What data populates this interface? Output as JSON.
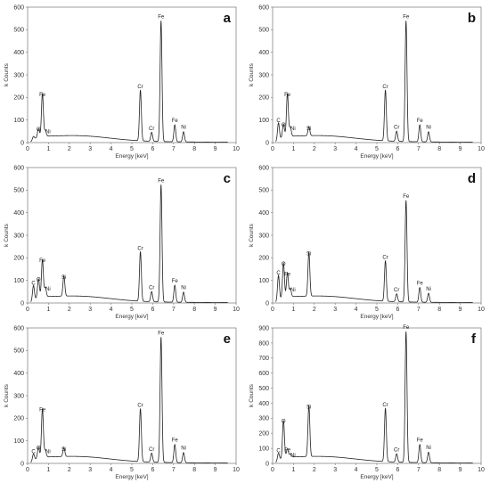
{
  "chart_data": [
    {
      "type": "line",
      "panel_letter": "a",
      "xlabel": "Energy [keV]",
      "ylabel": "k Counts",
      "xlim": [
        0,
        10
      ],
      "ylim": [
        0,
        600
      ],
      "xticks": [
        0,
        1,
        2,
        3,
        4,
        5,
        6,
        7,
        8,
        9,
        10
      ],
      "yticks": [
        0,
        100,
        200,
        300,
        400,
        500,
        600
      ],
      "peaks": [
        {
          "label": "",
          "x": 0.28,
          "y": 15
        },
        {
          "label": "O",
          "x": 0.52,
          "y": 35
        },
        {
          "label": "Fe",
          "x": 0.71,
          "y": 190
        },
        {
          "label": "Ni",
          "x": 0.85,
          "y": 25
        },
        {
          "label": "Cr",
          "x": 5.41,
          "y": 225
        },
        {
          "label": "Cr",
          "x": 5.95,
          "y": 40
        },
        {
          "label": "Fe",
          "x": 6.4,
          "y": 535
        },
        {
          "label": "Fe",
          "x": 7.06,
          "y": 75
        },
        {
          "label": "Ni",
          "x": 7.48,
          "y": 45
        }
      ]
    },
    {
      "type": "line",
      "panel_letter": "b",
      "xlabel": "Energy [keV]",
      "ylabel": "k Counts",
      "xlim": [
        0,
        10
      ],
      "ylim": [
        0,
        600
      ],
      "xticks": [
        0,
        1,
        2,
        3,
        4,
        5,
        6,
        7,
        8,
        9,
        10
      ],
      "yticks": [
        0,
        100,
        200,
        300,
        400,
        500,
        600
      ],
      "peaks": [
        {
          "label": "C",
          "x": 0.28,
          "y": 75
        },
        {
          "label": "O",
          "x": 0.52,
          "y": 55
        },
        {
          "label": "Fe",
          "x": 0.71,
          "y": 190
        },
        {
          "label": "Ni",
          "x": 0.85,
          "y": 40
        },
        {
          "label": "Si",
          "x": 1.74,
          "y": 40
        },
        {
          "label": "Cr",
          "x": 5.41,
          "y": 225
        },
        {
          "label": "Cr",
          "x": 5.95,
          "y": 45
        },
        {
          "label": "Fe",
          "x": 6.4,
          "y": 535
        },
        {
          "label": "Fe",
          "x": 7.06,
          "y": 75
        },
        {
          "label": "Ni",
          "x": 7.48,
          "y": 45
        }
      ]
    },
    {
      "type": "line",
      "panel_letter": "c",
      "xlabel": "Energy [keV]",
      "ylabel": "k Counts",
      "xlim": [
        0,
        10
      ],
      "ylim": [
        0,
        600
      ],
      "xticks": [
        0,
        1,
        2,
        3,
        4,
        5,
        6,
        7,
        8,
        9,
        10
      ],
      "yticks": [
        0,
        100,
        200,
        300,
        400,
        500,
        600
      ],
      "peaks": [
        {
          "label": "C",
          "x": 0.28,
          "y": 65
        },
        {
          "label": "O",
          "x": 0.52,
          "y": 80
        },
        {
          "label": "Fe",
          "x": 0.71,
          "y": 165
        },
        {
          "label": "Ni",
          "x": 0.85,
          "y": 40
        },
        {
          "label": "Si",
          "x": 1.74,
          "y": 90
        },
        {
          "label": "Cr",
          "x": 5.41,
          "y": 220
        },
        {
          "label": "Cr",
          "x": 5.95,
          "y": 45
        },
        {
          "label": "Fe",
          "x": 6.4,
          "y": 520
        },
        {
          "label": "Fe",
          "x": 7.06,
          "y": 75
        },
        {
          "label": "Ni",
          "x": 7.48,
          "y": 45
        }
      ]
    },
    {
      "type": "line",
      "panel_letter": "d",
      "xlabel": "Energy [keV]",
      "ylabel": "k Counts",
      "xlim": [
        0,
        10
      ],
      "ylim": [
        0,
        600
      ],
      "xticks": [
        0,
        1,
        2,
        3,
        4,
        5,
        6,
        7,
        8,
        9,
        10
      ],
      "yticks": [
        0,
        100,
        200,
        300,
        400,
        500,
        600
      ],
      "peaks": [
        {
          "label": "C",
          "x": 0.28,
          "y": 110
        },
        {
          "label": "O",
          "x": 0.52,
          "y": 150
        },
        {
          "label": "Fe",
          "x": 0.71,
          "y": 105
        },
        {
          "label": "Ni",
          "x": 0.85,
          "y": 35
        },
        {
          "label": "Si",
          "x": 1.74,
          "y": 195
        },
        {
          "label": "Cr",
          "x": 5.41,
          "y": 180
        },
        {
          "label": "Cr",
          "x": 5.95,
          "y": 35
        },
        {
          "label": "Fe",
          "x": 6.4,
          "y": 450
        },
        {
          "label": "Fe",
          "x": 7.06,
          "y": 65
        },
        {
          "label": "Ni",
          "x": 7.48,
          "y": 40
        }
      ]
    },
    {
      "type": "line",
      "panel_letter": "e",
      "xlabel": "Energy [keV]",
      "ylabel": "k Counts",
      "xlim": [
        0,
        10
      ],
      "ylim": [
        0,
        600
      ],
      "xticks": [
        0,
        1,
        2,
        3,
        4,
        5,
        6,
        7,
        8,
        9,
        10
      ],
      "yticks": [
        0,
        100,
        200,
        300,
        400,
        500,
        600
      ],
      "peaks": [
        {
          "label": "C",
          "x": 0.28,
          "y": 30
        },
        {
          "label": "O",
          "x": 0.52,
          "y": 45
        },
        {
          "label": "Fe",
          "x": 0.71,
          "y": 215
        },
        {
          "label": "Ni",
          "x": 0.85,
          "y": 30
        },
        {
          "label": "Si",
          "x": 1.74,
          "y": 40
        },
        {
          "label": "Cr",
          "x": 5.41,
          "y": 235
        },
        {
          "label": "Cr",
          "x": 5.95,
          "y": 40
        },
        {
          "label": "Fe",
          "x": 6.4,
          "y": 555
        },
        {
          "label": "Fe",
          "x": 7.06,
          "y": 80
        },
        {
          "label": "Ni",
          "x": 7.48,
          "y": 45
        }
      ]
    },
    {
      "type": "line",
      "panel_letter": "f",
      "xlabel": "Energy [keV]",
      "ylabel": "k Counts",
      "xlim": [
        0,
        10
      ],
      "ylim": [
        0,
        900
      ],
      "xticks": [
        0,
        1,
        2,
        3,
        4,
        5,
        6,
        7,
        8,
        9,
        10
      ],
      "yticks": [
        0,
        100,
        200,
        300,
        400,
        500,
        600,
        700,
        800,
        900
      ],
      "peaks": [
        {
          "label": "C",
          "x": 0.28,
          "y": 50
        },
        {
          "label": "O",
          "x": 0.52,
          "y": 245
        },
        {
          "label": "Fe",
          "x": 0.71,
          "y": 55
        },
        {
          "label": "Ni",
          "x": 0.85,
          "y": 20
        },
        {
          "label": "Si",
          "x": 1.74,
          "y": 340
        },
        {
          "label": "Cr",
          "x": 5.41,
          "y": 355
        },
        {
          "label": "Cr",
          "x": 5.95,
          "y": 55
        },
        {
          "label": "Fe",
          "x": 6.4,
          "y": 870
        },
        {
          "label": "Fe",
          "x": 7.06,
          "y": 120
        },
        {
          "label": "Ni",
          "x": 7.48,
          "y": 70
        }
      ]
    }
  ]
}
